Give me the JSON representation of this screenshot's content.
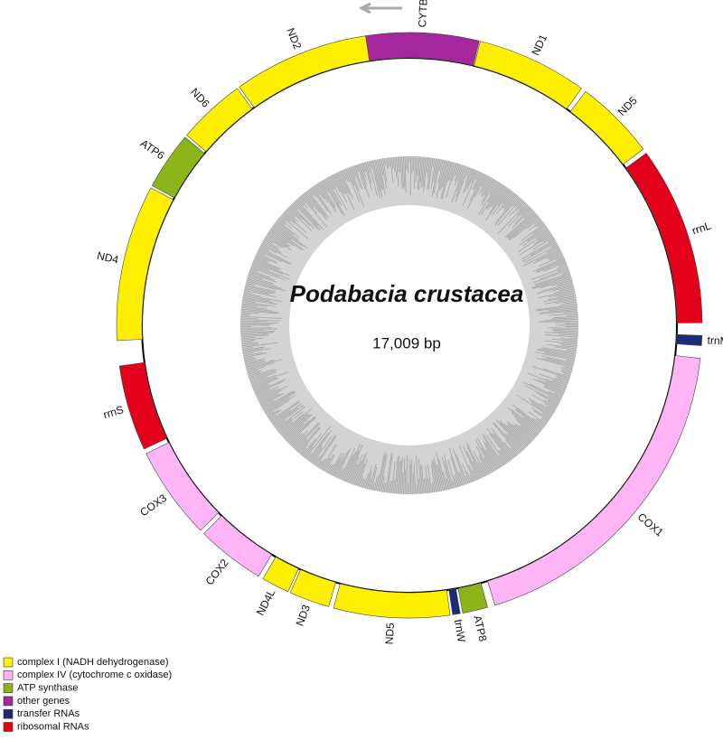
{
  "map": {
    "title": "Podabacia crustacea",
    "subtitle": "17,009 bp",
    "genes": [
      {
        "label": "CYTB",
        "color": "#a4279e"
      },
      {
        "label": "ND1",
        "color": "#fff000"
      },
      {
        "label": "ND5",
        "color": "#fff000"
      },
      {
        "label": "rrnL",
        "color": "#e3001b"
      },
      {
        "label": "trnM",
        "color": "#1d2a78"
      },
      {
        "label": "COX1",
        "color": "#ffb4f6"
      },
      {
        "label": "ATP8",
        "color": "#8cb51a"
      },
      {
        "label": "trnW",
        "color": "#1d2a78"
      },
      {
        "label": "ND5",
        "color": "#fff000"
      },
      {
        "label": "ND3",
        "color": "#fff000"
      },
      {
        "label": "ND4L",
        "color": "#fff000"
      },
      {
        "label": "COX2",
        "color": "#ffb4f6"
      },
      {
        "label": "COX3",
        "color": "#ffb4f6"
      },
      {
        "label": "rrnS",
        "color": "#e3001b"
      },
      {
        "label": "ND4",
        "color": "#fff000"
      },
      {
        "label": "ATP6",
        "color": "#8cb51a"
      },
      {
        "label": "ND6",
        "color": "#fff000"
      },
      {
        "label": "ND2",
        "color": "#fff000"
      }
    ]
  },
  "legend": [
    {
      "label": "complex I (NADH dehydrogenase)",
      "color": "#fff000"
    },
    {
      "label": "complex IV (cytochrome c oxidase)",
      "color": "#ffb4f6"
    },
    {
      "label": "ATP synthase",
      "color": "#8cb51a"
    },
    {
      "label": "other genes",
      "color": "#a4279e"
    },
    {
      "label": "transfer RNAs",
      "color": "#1d2a78"
    },
    {
      "label": "ribosomal RNAs",
      "color": "#e3001b"
    }
  ]
}
